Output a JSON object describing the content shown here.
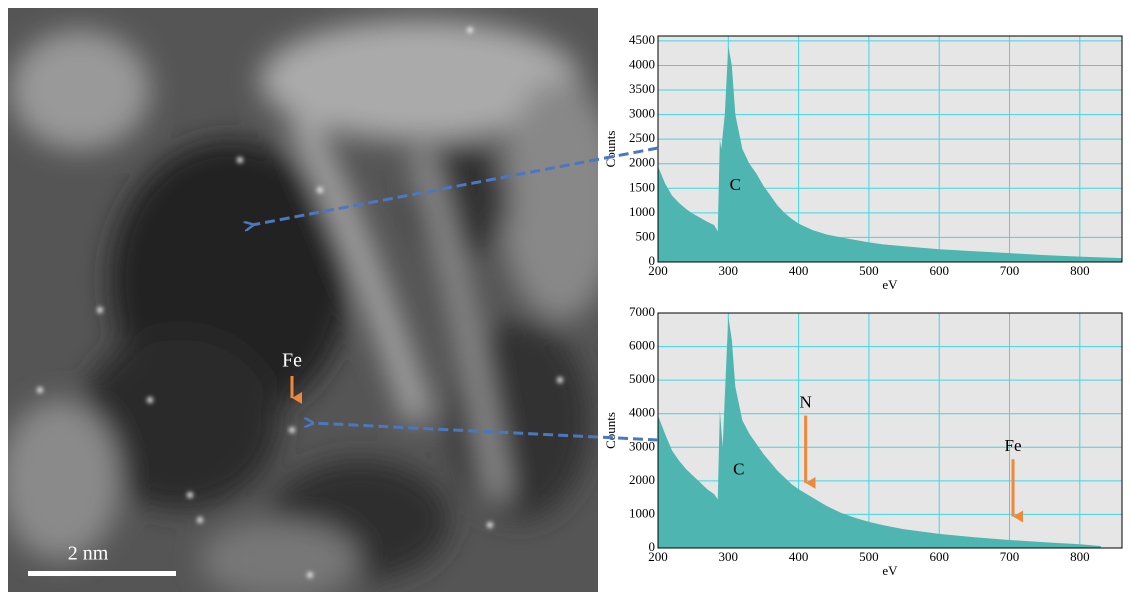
{
  "image": {
    "label": "Fe",
    "scale_bar": "2 nm"
  },
  "chart_data": [
    {
      "type": "area",
      "ylabel": "Counts",
      "xlabel": "eV",
      "color": "#4fb5b0",
      "grid": true,
      "grid_color": "#3fd6e6",
      "xlim": [
        200,
        860
      ],
      "ylim": [
        0,
        4600
      ],
      "xticks": [
        200,
        300,
        400,
        500,
        600,
        700,
        800
      ],
      "yticks": [
        0,
        500,
        1000,
        1500,
        2000,
        2500,
        3000,
        3500,
        4000,
        4500
      ],
      "x": [
        200,
        210,
        220,
        230,
        240,
        250,
        260,
        270,
        280,
        285,
        288,
        290,
        295,
        300,
        305,
        310,
        320,
        330,
        340,
        350,
        360,
        370,
        380,
        390,
        400,
        420,
        440,
        460,
        480,
        500,
        520,
        550,
        600,
        650,
        700,
        750,
        800,
        860
      ],
      "values": [
        1950,
        1600,
        1350,
        1200,
        1080,
        980,
        900,
        820,
        750,
        620,
        2500,
        2300,
        3000,
        4400,
        4000,
        3000,
        2300,
        2000,
        1800,
        1550,
        1350,
        1150,
        1000,
        880,
        780,
        650,
        560,
        500,
        450,
        400,
        360,
        320,
        260,
        220,
        180,
        140,
        110,
        80
      ],
      "annotations": [
        {
          "text": "C",
          "x": 310,
          "y": 1550
        }
      ]
    },
    {
      "type": "area",
      "ylabel": "Counts",
      "xlabel": "eV",
      "color": "#4fb5b0",
      "grid": true,
      "grid_color": "#3fd6e6",
      "xlim": [
        200,
        860
      ],
      "ylim": [
        0,
        7000
      ],
      "xticks": [
        200,
        300,
        400,
        500,
        600,
        700,
        800
      ],
      "yticks": [
        0,
        1000,
        2000,
        3000,
        4000,
        5000,
        6000,
        7000
      ],
      "x": [
        200,
        210,
        220,
        230,
        240,
        250,
        260,
        270,
        280,
        285,
        288,
        292,
        295,
        300,
        305,
        310,
        320,
        330,
        340,
        350,
        360,
        370,
        380,
        390,
        400,
        420,
        440,
        460,
        480,
        500,
        520,
        550,
        600,
        650,
        700,
        750,
        800,
        830
      ],
      "values": [
        3950,
        3400,
        2900,
        2600,
        2350,
        2150,
        1950,
        1750,
        1600,
        1450,
        4100,
        3000,
        4500,
        6900,
        6200,
        4800,
        3800,
        3400,
        3100,
        2800,
        2550,
        2300,
        2100,
        1900,
        1750,
        1500,
        1250,
        1050,
        900,
        780,
        680,
        560,
        420,
        320,
        240,
        170,
        110,
        60
      ],
      "annotations": [
        {
          "text": "C",
          "x": 315,
          "y": 2300
        },
        {
          "text": "N",
          "x": 410,
          "y": 4300,
          "arrow_to": 1700
        },
        {
          "text": "Fe",
          "x": 705,
          "y": 3000,
          "arrow_to": 700
        }
      ]
    }
  ]
}
